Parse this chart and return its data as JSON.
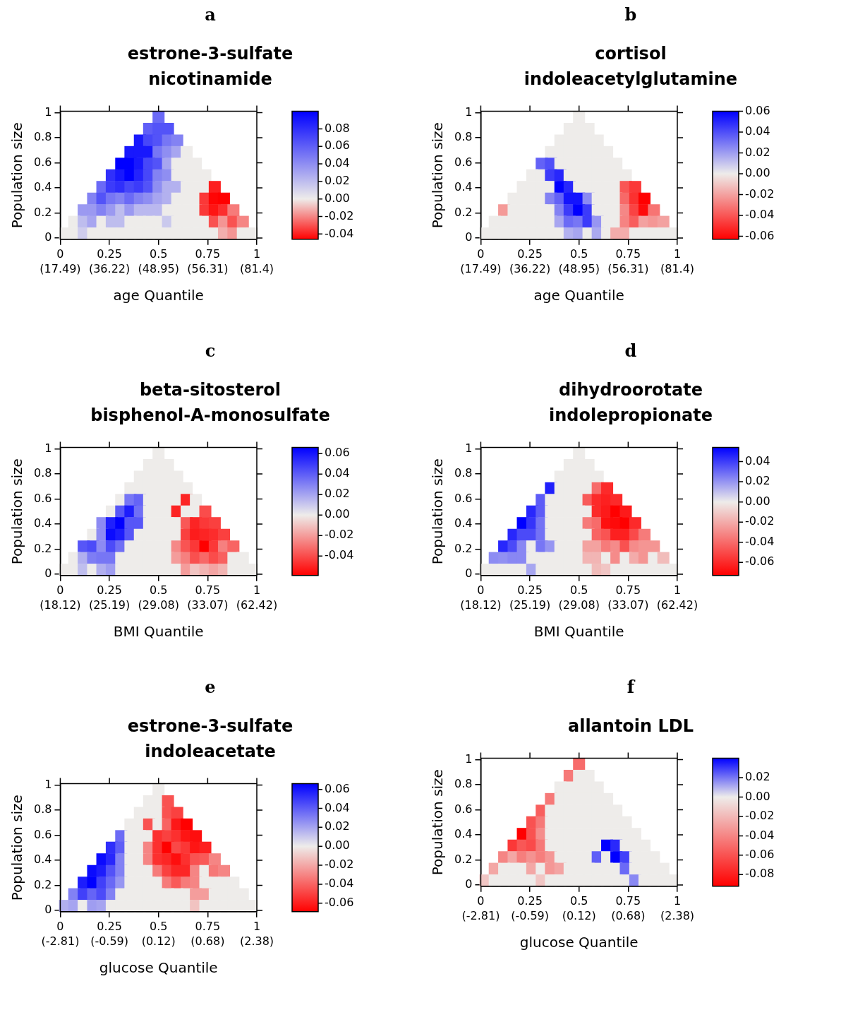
{
  "chart_data": [
    {
      "type": "scatter",
      "title": "a",
      "subtitle": "estrone-3-sulfate\nnicotinamide",
      "xlabel": "age Quantile",
      "ylabel": "Population size",
      "marker": "square",
      "x": [
        0.5,
        0.452,
        0.5,
        0.548,
        0.405,
        0.452,
        0.5,
        0.548,
        0.595,
        0.357,
        0.405,
        0.452,
        0.5,
        0.548,
        0.595,
        0.643,
        0.31,
        0.357,
        0.405,
        0.452,
        0.5,
        0.548,
        0.595,
        0.643,
        0.69,
        0.262,
        0.31,
        0.357,
        0.405,
        0.452,
        0.5,
        0.548,
        0.595,
        0.643,
        0.69,
        0.738,
        0.214,
        0.262,
        0.31,
        0.357,
        0.405,
        0.452,
        0.5,
        0.548,
        0.595,
        0.643,
        0.69,
        0.738,
        0.786,
        0.167,
        0.214,
        0.262,
        0.31,
        0.357,
        0.405,
        0.452,
        0.5,
        0.548,
        0.595,
        0.643,
        0.69,
        0.738,
        0.786,
        0.833,
        0.119,
        0.167,
        0.214,
        0.262,
        0.31,
        0.357,
        0.405,
        0.452,
        0.5,
        0.548,
        0.595,
        0.643,
        0.69,
        0.738,
        0.786,
        0.833,
        0.881,
        0.071,
        0.119,
        0.167,
        0.214,
        0.262,
        0.31,
        0.357,
        0.405,
        0.452,
        0.5,
        0.548,
        0.595,
        0.643,
        0.69,
        0.738,
        0.786,
        0.833,
        0.881,
        0.929,
        0.024,
        0.071,
        0.119,
        0.167,
        0.214,
        0.262,
        0.31,
        0.357,
        0.405,
        0.452,
        0.5,
        0.548,
        0.595,
        0.643,
        0.69,
        0.738,
        0.786,
        0.833,
        0.881,
        0.929,
        0.976
      ],
      "values": [
        0.963,
        0.87,
        0.87,
        0.87,
        0.777,
        0.777,
        0.777,
        0.777,
        0.777,
        0.685,
        0.685,
        0.685,
        0.685,
        0.685,
        0.685,
        0.685,
        0.592,
        0.592,
        0.592,
        0.592,
        0.592,
        0.592,
        0.592,
        0.592,
        0.592,
        0.5,
        0.5,
        0.5,
        0.5,
        0.5,
        0.5,
        0.5,
        0.5,
        0.5,
        0.5,
        0.5,
        0.407,
        0.407,
        0.407,
        0.407,
        0.407,
        0.407,
        0.407,
        0.407,
        0.407,
        0.407,
        0.407,
        0.407,
        0.407,
        0.314,
        0.314,
        0.314,
        0.314,
        0.314,
        0.314,
        0.314,
        0.314,
        0.314,
        0.314,
        0.314,
        0.314,
        0.314,
        0.314,
        0.314,
        0.221,
        0.221,
        0.221,
        0.221,
        0.221,
        0.221,
        0.221,
        0.221,
        0.221,
        0.221,
        0.221,
        0.221,
        0.221,
        0.221,
        0.221,
        0.221,
        0.221,
        0.129,
        0.129,
        0.129,
        0.129,
        0.129,
        0.129,
        0.129,
        0.129,
        0.129,
        0.129,
        0.129,
        0.129,
        0.129,
        0.129,
        0.129,
        0.129,
        0.129,
        0.129,
        0.129,
        0.036,
        0.036,
        0.036,
        0.036,
        0.036,
        0.036,
        0.036,
        0.036,
        0.036,
        0.036,
        0.036,
        0.036,
        0.036,
        0.036,
        0.036,
        0.036,
        0.036,
        0.036,
        0.036,
        0.036,
        0.036
      ],
      "cvalues": [
        0.055,
        0.06,
        0.065,
        0.065,
        0.09,
        0.07,
        0.065,
        0.05,
        0.045,
        0.09,
        0.09,
        0.09,
        0.05,
        0.04,
        0.03,
        0,
        0.1,
        0.1,
        0.09,
        0.07,
        0.065,
        0.03,
        0,
        0,
        0,
        0.08,
        0.09,
        0.1,
        0.085,
        0.07,
        0.045,
        0.04,
        0,
        0,
        0,
        0,
        0.055,
        0.075,
        0.08,
        0.07,
        0.075,
        0.065,
        0.04,
        0.025,
        0.025,
        0,
        0,
        0,
        -0.04,
        0.045,
        0.065,
        0.05,
        0.045,
        0.055,
        0.045,
        0.04,
        0.03,
        0.025,
        0,
        0,
        0,
        -0.035,
        -0.045,
        -0.046,
        0.035,
        0.035,
        0.045,
        0.035,
        0.02,
        0.035,
        0.022,
        0.022,
        0.022,
        0,
        0,
        0,
        0,
        -0.035,
        -0.042,
        -0.037,
        -0.022,
        0,
        0.02,
        0.03,
        0,
        0.02,
        0.02,
        0,
        0,
        0,
        0,
        0.015,
        0,
        0,
        0,
        0,
        -0.03,
        -0.017,
        -0.03,
        -0.02,
        0,
        0,
        0.013,
        0,
        0,
        0,
        0,
        0,
        0,
        0,
        0,
        0,
        0,
        0,
        0,
        0,
        0,
        -0.012,
        -0.017,
        0,
        0
      ],
      "xlim": [
        0,
        1
      ],
      "xticks": [
        0,
        0.25,
        0.5,
        0.75,
        1
      ],
      "annotations": [
        "(17.49)",
        "(36.22)",
        "(48.95)",
        "(56.31)",
        "(81.4)"
      ],
      "ylim": [
        -0.01,
        1.01
      ],
      "yticks": [
        0,
        0.2,
        0.4,
        0.6,
        0.8,
        1
      ],
      "clim": [
        -0.046,
        0.1
      ],
      "cticks": [
        {
          "value": 0.08,
          "label": "0.08"
        },
        {
          "value": 0.06,
          "label": "0.06"
        },
        {
          "value": 0.04,
          "label": "0.04"
        },
        {
          "value": 0.02,
          "label": "0.02"
        },
        {
          "value": 0,
          "label": "0.00"
        },
        {
          "value": -0.02,
          "label": "-0.02"
        },
        {
          "value": -0.04,
          "label": "-0.04"
        }
      ]
    },
    {
      "type": "scatter",
      "title": "b",
      "subtitle": "cortisol\nindoleacetylglutamine",
      "xlabel": "age Quantile",
      "ylabel": "Population size",
      "marker": "square",
      "x": [
        0.5,
        0.452,
        0.5,
        0.548,
        0.405,
        0.452,
        0.5,
        0.548,
        0.595,
        0.357,
        0.405,
        0.452,
        0.5,
        0.548,
        0.595,
        0.643,
        0.31,
        0.357,
        0.405,
        0.452,
        0.5,
        0.548,
        0.595,
        0.643,
        0.69,
        0.262,
        0.31,
        0.357,
        0.405,
        0.452,
        0.5,
        0.548,
        0.595,
        0.643,
        0.69,
        0.738,
        0.214,
        0.262,
        0.31,
        0.357,
        0.405,
        0.452,
        0.5,
        0.548,
        0.595,
        0.643,
        0.69,
        0.738,
        0.786,
        0.167,
        0.214,
        0.262,
        0.31,
        0.357,
        0.405,
        0.452,
        0.5,
        0.548,
        0.595,
        0.643,
        0.69,
        0.738,
        0.786,
        0.833,
        0.119,
        0.167,
        0.214,
        0.262,
        0.31,
        0.357,
        0.405,
        0.452,
        0.5,
        0.548,
        0.595,
        0.643,
        0.69,
        0.738,
        0.786,
        0.833,
        0.881,
        0.071,
        0.119,
        0.167,
        0.214,
        0.262,
        0.31,
        0.357,
        0.405,
        0.452,
        0.5,
        0.548,
        0.595,
        0.643,
        0.69,
        0.738,
        0.786,
        0.833,
        0.881,
        0.929,
        0.024,
        0.071,
        0.119,
        0.167,
        0.214,
        0.262,
        0.31,
        0.357,
        0.405,
        0.452,
        0.5,
        0.548,
        0.595,
        0.643,
        0.69,
        0.738,
        0.786,
        0.833,
        0.881,
        0.929,
        0.976
      ],
      "values": [
        0.963,
        0.87,
        0.87,
        0.87,
        0.777,
        0.777,
        0.777,
        0.777,
        0.777,
        0.685,
        0.685,
        0.685,
        0.685,
        0.685,
        0.685,
        0.685,
        0.592,
        0.592,
        0.592,
        0.592,
        0.592,
        0.592,
        0.592,
        0.592,
        0.592,
        0.5,
        0.5,
        0.5,
        0.5,
        0.5,
        0.5,
        0.5,
        0.5,
        0.5,
        0.5,
        0.5,
        0.407,
        0.407,
        0.407,
        0.407,
        0.407,
        0.407,
        0.407,
        0.407,
        0.407,
        0.407,
        0.407,
        0.407,
        0.407,
        0.314,
        0.314,
        0.314,
        0.314,
        0.314,
        0.314,
        0.314,
        0.314,
        0.314,
        0.314,
        0.314,
        0.314,
        0.314,
        0.314,
        0.314,
        0.221,
        0.221,
        0.221,
        0.221,
        0.221,
        0.221,
        0.221,
        0.221,
        0.221,
        0.221,
        0.221,
        0.221,
        0.221,
        0.221,
        0.221,
        0.221,
        0.221,
        0.129,
        0.129,
        0.129,
        0.129,
        0.129,
        0.129,
        0.129,
        0.129,
        0.129,
        0.129,
        0.129,
        0.129,
        0.129,
        0.129,
        0.129,
        0.129,
        0.129,
        0.129,
        0.129,
        0.036,
        0.036,
        0.036,
        0.036,
        0.036,
        0.036,
        0.036,
        0.036,
        0.036,
        0.036,
        0.036,
        0.036,
        0.036,
        0.036,
        0.036,
        0.036,
        0.036,
        0.036,
        0.036,
        0.036,
        0.036
      ],
      "cvalues": [
        0,
        0,
        0,
        0,
        0,
        0,
        0,
        0,
        0,
        0,
        0,
        0,
        0,
        0,
        0,
        0,
        0.035,
        0.04,
        0,
        0,
        0,
        0,
        0,
        0,
        0,
        0,
        0,
        0.045,
        0.05,
        0,
        0,
        0,
        0,
        0,
        0,
        0,
        0,
        0,
        0,
        0,
        0.06,
        0.05,
        0,
        0,
        0,
        0,
        0,
        -0.04,
        -0.048,
        0,
        0,
        0,
        0,
        0.027,
        0.035,
        0.055,
        0.055,
        0.025,
        0,
        0,
        0,
        -0.035,
        -0.05,
        -0.063,
        -0.022,
        0,
        0,
        0,
        0,
        0,
        0.027,
        0.045,
        0.06,
        0.045,
        0,
        0,
        0,
        -0.027,
        -0.045,
        -0.06,
        -0.032,
        0,
        0,
        0,
        0,
        0,
        0,
        0,
        0.018,
        0.033,
        0.03,
        0.045,
        0.022,
        0,
        0,
        -0.028,
        -0.038,
        -0.02,
        -0.023,
        -0.02,
        0,
        0,
        0,
        0,
        0,
        0,
        0,
        0,
        0,
        0.015,
        0.018,
        0,
        0.017,
        0,
        -0.017,
        -0.017,
        0,
        0,
        0,
        0,
        0
      ],
      "xlim": [
        0,
        1
      ],
      "xticks": [
        0,
        0.25,
        0.5,
        0.75,
        1
      ],
      "annotations": [
        "(17.49)",
        "(36.22)",
        "(48.95)",
        "(56.31)",
        "(81.4)"
      ],
      "ylim": [
        -0.01,
        1.01
      ],
      "yticks": [
        0,
        0.2,
        0.4,
        0.6,
        0.8,
        1
      ],
      "clim": [
        -0.063,
        0.06
      ],
      "cticks": [
        {
          "value": 0.06,
          "label": "0.06"
        },
        {
          "value": 0.04,
          "label": "0.04"
        },
        {
          "value": 0.02,
          "label": "0.02"
        },
        {
          "value": 0,
          "label": "0.00"
        },
        {
          "value": -0.02,
          "label": "-0.02"
        },
        {
          "value": -0.04,
          "label": "-0.04"
        },
        {
          "value": -0.06,
          "label": "-0.06"
        }
      ]
    },
    {
      "type": "scatter",
      "title": "c",
      "subtitle": "beta-sitosterol\nbisphenol-A-monosulfate",
      "xlabel": "BMI Quantile",
      "ylabel": "Population size",
      "marker": "square",
      "x": [
        0.5,
        0.452,
        0.5,
        0.548,
        0.405,
        0.452,
        0.5,
        0.548,
        0.595,
        0.357,
        0.405,
        0.452,
        0.5,
        0.548,
        0.595,
        0.643,
        0.31,
        0.357,
        0.405,
        0.452,
        0.5,
        0.548,
        0.595,
        0.643,
        0.69,
        0.262,
        0.31,
        0.357,
        0.405,
        0.452,
        0.5,
        0.548,
        0.595,
        0.643,
        0.69,
        0.738,
        0.214,
        0.262,
        0.31,
        0.357,
        0.405,
        0.452,
        0.5,
        0.548,
        0.595,
        0.643,
        0.69,
        0.738,
        0.786,
        0.167,
        0.214,
        0.262,
        0.31,
        0.357,
        0.405,
        0.452,
        0.5,
        0.548,
        0.595,
        0.643,
        0.69,
        0.738,
        0.786,
        0.833,
        0.119,
        0.167,
        0.214,
        0.262,
        0.31,
        0.357,
        0.405,
        0.452,
        0.5,
        0.548,
        0.595,
        0.643,
        0.69,
        0.738,
        0.786,
        0.833,
        0.881,
        0.071,
        0.119,
        0.167,
        0.214,
        0.262,
        0.31,
        0.357,
        0.405,
        0.452,
        0.5,
        0.548,
        0.595,
        0.643,
        0.69,
        0.738,
        0.786,
        0.833,
        0.881,
        0.929,
        0.024,
        0.071,
        0.119,
        0.167,
        0.214,
        0.262,
        0.31,
        0.357,
        0.405,
        0.452,
        0.5,
        0.548,
        0.595,
        0.643,
        0.69,
        0.738,
        0.786,
        0.833,
        0.881,
        0.929,
        0.976
      ],
      "values": [
        0.963,
        0.87,
        0.87,
        0.87,
        0.777,
        0.777,
        0.777,
        0.777,
        0.777,
        0.685,
        0.685,
        0.685,
        0.685,
        0.685,
        0.685,
        0.685,
        0.592,
        0.592,
        0.592,
        0.592,
        0.592,
        0.592,
        0.592,
        0.592,
        0.592,
        0.5,
        0.5,
        0.5,
        0.5,
        0.5,
        0.5,
        0.5,
        0.5,
        0.5,
        0.5,
        0.5,
        0.407,
        0.407,
        0.407,
        0.407,
        0.407,
        0.407,
        0.407,
        0.407,
        0.407,
        0.407,
        0.407,
        0.407,
        0.407,
        0.314,
        0.314,
        0.314,
        0.314,
        0.314,
        0.314,
        0.314,
        0.314,
        0.314,
        0.314,
        0.314,
        0.314,
        0.314,
        0.314,
        0.314,
        0.221,
        0.221,
        0.221,
        0.221,
        0.221,
        0.221,
        0.221,
        0.221,
        0.221,
        0.221,
        0.221,
        0.221,
        0.221,
        0.221,
        0.221,
        0.221,
        0.221,
        0.129,
        0.129,
        0.129,
        0.129,
        0.129,
        0.129,
        0.129,
        0.129,
        0.129,
        0.129,
        0.129,
        0.129,
        0.129,
        0.129,
        0.129,
        0.129,
        0.129,
        0.129,
        0.129,
        0.036,
        0.036,
        0.036,
        0.036,
        0.036,
        0.036,
        0.036,
        0.036,
        0.036,
        0.036,
        0.036,
        0.036,
        0.036,
        0.036,
        0.036,
        0.036,
        0.036,
        0.036,
        0.036,
        0.036,
        0.036
      ],
      "cvalues": [
        0,
        0,
        0,
        0,
        0,
        0,
        0,
        0,
        0,
        0,
        0,
        0,
        0,
        0,
        0,
        0,
        0,
        0.033,
        0.038,
        0,
        0,
        0,
        0,
        -0.05,
        0,
        0,
        0.042,
        0.058,
        0.035,
        0,
        0,
        0,
        -0.05,
        0,
        0,
        -0.04,
        0.027,
        0.057,
        0.066,
        0.042,
        0.042,
        0,
        0,
        0,
        0,
        -0.037,
        -0.05,
        -0.045,
        -0.043,
        0,
        0.027,
        0.063,
        0.058,
        0.042,
        0,
        0,
        0,
        0,
        0,
        -0.043,
        -0.052,
        -0.05,
        -0.048,
        -0.043,
        0.042,
        0.045,
        0.027,
        0.045,
        0.035,
        0,
        0,
        0,
        0,
        0,
        -0.025,
        -0.038,
        -0.045,
        -0.059,
        -0.045,
        -0.027,
        -0.034,
        0,
        0.017,
        0.031,
        0.033,
        0.033,
        0,
        0,
        0,
        0,
        0,
        0,
        -0.02,
        -0.027,
        -0.039,
        -0.033,
        -0.04,
        -0.035,
        0,
        0,
        0,
        0,
        0.013,
        0,
        0.017,
        0.022,
        0,
        0,
        0,
        0,
        0,
        0,
        0,
        -0.02,
        -0.01,
        -0.014,
        -0.018,
        -0.014,
        0,
        0,
        0
      ],
      "xlim": [
        0,
        1
      ],
      "xticks": [
        0,
        0.25,
        0.5,
        0.75,
        1
      ],
      "annotations": [
        "(18.12)",
        "(25.19)",
        "(29.08)",
        "(33.07)",
        "(62.42)"
      ],
      "ylim": [
        -0.01,
        1.01
      ],
      "yticks": [
        0,
        0.2,
        0.4,
        0.6,
        0.8,
        1
      ],
      "clim": [
        -0.059,
        0.066
      ],
      "cticks": [
        {
          "value": 0.06,
          "label": "0.06"
        },
        {
          "value": 0.04,
          "label": "0.04"
        },
        {
          "value": 0.02,
          "label": "0.02"
        },
        {
          "value": 0,
          "label": "0.00"
        },
        {
          "value": -0.02,
          "label": "-0.02"
        },
        {
          "value": -0.04,
          "label": "-0.04"
        }
      ]
    },
    {
      "type": "scatter",
      "title": "d",
      "subtitle": "dihydroorotate\nindolepropionate",
      "xlabel": "BMI Quantile",
      "ylabel": "Population size",
      "marker": "square",
      "x": [
        0.5,
        0.452,
        0.5,
        0.548,
        0.405,
        0.452,
        0.5,
        0.548,
        0.595,
        0.357,
        0.405,
        0.452,
        0.5,
        0.548,
        0.595,
        0.643,
        0.31,
        0.357,
        0.405,
        0.452,
        0.5,
        0.548,
        0.595,
        0.643,
        0.69,
        0.262,
        0.31,
        0.357,
        0.405,
        0.452,
        0.5,
        0.548,
        0.595,
        0.643,
        0.69,
        0.738,
        0.214,
        0.262,
        0.31,
        0.357,
        0.405,
        0.452,
        0.5,
        0.548,
        0.595,
        0.643,
        0.69,
        0.738,
        0.786,
        0.167,
        0.214,
        0.262,
        0.31,
        0.357,
        0.405,
        0.452,
        0.5,
        0.548,
        0.595,
        0.643,
        0.69,
        0.738,
        0.786,
        0.833,
        0.119,
        0.167,
        0.214,
        0.262,
        0.31,
        0.357,
        0.405,
        0.452,
        0.5,
        0.548,
        0.595,
        0.643,
        0.69,
        0.738,
        0.786,
        0.833,
        0.881,
        0.071,
        0.119,
        0.167,
        0.214,
        0.262,
        0.31,
        0.357,
        0.405,
        0.452,
        0.5,
        0.548,
        0.595,
        0.643,
        0.69,
        0.738,
        0.786,
        0.833,
        0.881,
        0.929,
        0.024,
        0.071,
        0.119,
        0.167,
        0.214,
        0.262,
        0.31,
        0.357,
        0.405,
        0.452,
        0.5,
        0.548,
        0.595,
        0.643,
        0.69,
        0.738,
        0.786,
        0.833,
        0.881,
        0.929,
        0.976
      ],
      "values": [
        0.963,
        0.87,
        0.87,
        0.87,
        0.777,
        0.777,
        0.777,
        0.777,
        0.777,
        0.685,
        0.685,
        0.685,
        0.685,
        0.685,
        0.685,
        0.685,
        0.592,
        0.592,
        0.592,
        0.592,
        0.592,
        0.592,
        0.592,
        0.592,
        0.592,
        0.5,
        0.5,
        0.5,
        0.5,
        0.5,
        0.5,
        0.5,
        0.5,
        0.5,
        0.5,
        0.5,
        0.407,
        0.407,
        0.407,
        0.407,
        0.407,
        0.407,
        0.407,
        0.407,
        0.407,
        0.407,
        0.407,
        0.407,
        0.407,
        0.314,
        0.314,
        0.314,
        0.314,
        0.314,
        0.314,
        0.314,
        0.314,
        0.314,
        0.314,
        0.314,
        0.314,
        0.314,
        0.314,
        0.314,
        0.221,
        0.221,
        0.221,
        0.221,
        0.221,
        0.221,
        0.221,
        0.221,
        0.221,
        0.221,
        0.221,
        0.221,
        0.221,
        0.221,
        0.221,
        0.221,
        0.221,
        0.129,
        0.129,
        0.129,
        0.129,
        0.129,
        0.129,
        0.129,
        0.129,
        0.129,
        0.129,
        0.129,
        0.129,
        0.129,
        0.129,
        0.129,
        0.129,
        0.129,
        0.129,
        0.129,
        0.036,
        0.036,
        0.036,
        0.036,
        0.036,
        0.036,
        0.036,
        0.036,
        0.036,
        0.036,
        0.036,
        0.036,
        0.036,
        0.036,
        0.036,
        0.036,
        0.036,
        0.036,
        0.036,
        0.036,
        0.036
      ],
      "cvalues": [
        0,
        0,
        0,
        0,
        0,
        0,
        0,
        0,
        0,
        0.047,
        0,
        0,
        0,
        0,
        -0.04,
        -0.06,
        0.033,
        0,
        0,
        0,
        0,
        -0.045,
        -0.06,
        -0.063,
        -0.06,
        0.045,
        0.033,
        0,
        0,
        0,
        0,
        0,
        -0.06,
        -0.065,
        -0.073,
        -0.065,
        0.054,
        0.042,
        0.028,
        0,
        0,
        0,
        0,
        -0.035,
        -0.04,
        -0.068,
        -0.07,
        -0.073,
        -0.06,
        0.045,
        0.037,
        0.037,
        0.028,
        0,
        0,
        0,
        0,
        0,
        -0.042,
        -0.047,
        -0.063,
        -0.063,
        -0.05,
        -0.035,
        0.045,
        0.037,
        0.023,
        0,
        0.027,
        0.02,
        0,
        0,
        0,
        -0.023,
        -0.023,
        -0.035,
        -0.03,
        -0.048,
        -0.03,
        -0.027,
        -0.027,
        0.022,
        0.021,
        0.023,
        0.023,
        0,
        0,
        0,
        0,
        0,
        0,
        -0.017,
        -0.017,
        0,
        -0.03,
        0,
        -0.02,
        -0.027,
        0,
        -0.015,
        0,
        0,
        0,
        0,
        0,
        0.016,
        0,
        0,
        0,
        0,
        0,
        0,
        -0.015,
        -0.012,
        0,
        0,
        0,
        0,
        0,
        0,
        0
      ],
      "xlim": [
        0,
        1
      ],
      "xticks": [
        0,
        0.25,
        0.5,
        0.75,
        1
      ],
      "annotations": [
        "(18.12)",
        "(25.19)",
        "(29.08)",
        "(33.07)",
        "(62.42)"
      ],
      "ylim": [
        -0.01,
        1.01
      ],
      "yticks": [
        0,
        0.2,
        0.4,
        0.6,
        0.8,
        1
      ],
      "clim": [
        -0.073,
        0.054
      ],
      "cticks": [
        {
          "value": 0.04,
          "label": "0.04"
        },
        {
          "value": 0.02,
          "label": "0.02"
        },
        {
          "value": 0,
          "label": "0.00"
        },
        {
          "value": -0.02,
          "label": "-0.02"
        },
        {
          "value": -0.04,
          "label": "-0.04"
        },
        {
          "value": -0.06,
          "label": "-0.06"
        }
      ]
    },
    {
      "type": "scatter",
      "title": "e",
      "subtitle": "estrone-3-sulfate\nindoleacetate",
      "xlabel": "glucose Quantile",
      "ylabel": "Population size",
      "marker": "square",
      "x": [
        0.5,
        0.452,
        0.5,
        0.548,
        0.405,
        0.452,
        0.5,
        0.548,
        0.595,
        0.357,
        0.405,
        0.452,
        0.5,
        0.548,
        0.595,
        0.643,
        0.31,
        0.357,
        0.405,
        0.452,
        0.5,
        0.548,
        0.595,
        0.643,
        0.69,
        0.262,
        0.31,
        0.357,
        0.405,
        0.452,
        0.5,
        0.548,
        0.595,
        0.643,
        0.69,
        0.738,
        0.214,
        0.262,
        0.31,
        0.357,
        0.405,
        0.452,
        0.5,
        0.548,
        0.595,
        0.643,
        0.69,
        0.738,
        0.786,
        0.167,
        0.214,
        0.262,
        0.31,
        0.357,
        0.405,
        0.452,
        0.5,
        0.548,
        0.595,
        0.643,
        0.69,
        0.738,
        0.786,
        0.833,
        0.119,
        0.167,
        0.214,
        0.262,
        0.31,
        0.357,
        0.405,
        0.452,
        0.5,
        0.548,
        0.595,
        0.643,
        0.69,
        0.738,
        0.786,
        0.833,
        0.881,
        0.071,
        0.119,
        0.167,
        0.214,
        0.262,
        0.31,
        0.357,
        0.405,
        0.452,
        0.5,
        0.548,
        0.595,
        0.643,
        0.69,
        0.738,
        0.786,
        0.833,
        0.881,
        0.929,
        0.024,
        0.071,
        0.119,
        0.167,
        0.214,
        0.262,
        0.31,
        0.357,
        0.405,
        0.452,
        0.5,
        0.548,
        0.595,
        0.643,
        0.69,
        0.738,
        0.786,
        0.833,
        0.881,
        0.929,
        0.976
      ],
      "values": [
        0.963,
        0.87,
        0.87,
        0.87,
        0.777,
        0.777,
        0.777,
        0.777,
        0.777,
        0.685,
        0.685,
        0.685,
        0.685,
        0.685,
        0.685,
        0.685,
        0.592,
        0.592,
        0.592,
        0.592,
        0.592,
        0.592,
        0.592,
        0.592,
        0.592,
        0.5,
        0.5,
        0.5,
        0.5,
        0.5,
        0.5,
        0.5,
        0.5,
        0.5,
        0.5,
        0.5,
        0.407,
        0.407,
        0.407,
        0.407,
        0.407,
        0.407,
        0.407,
        0.407,
        0.407,
        0.407,
        0.407,
        0.407,
        0.407,
        0.314,
        0.314,
        0.314,
        0.314,
        0.314,
        0.314,
        0.314,
        0.314,
        0.314,
        0.314,
        0.314,
        0.314,
        0.314,
        0.314,
        0.314,
        0.221,
        0.221,
        0.221,
        0.221,
        0.221,
        0.221,
        0.221,
        0.221,
        0.221,
        0.221,
        0.221,
        0.221,
        0.221,
        0.221,
        0.221,
        0.221,
        0.221,
        0.129,
        0.129,
        0.129,
        0.129,
        0.129,
        0.129,
        0.129,
        0.129,
        0.129,
        0.129,
        0.129,
        0.129,
        0.129,
        0.129,
        0.129,
        0.129,
        0.129,
        0.129,
        0.129,
        0.036,
        0.036,
        0.036,
        0.036,
        0.036,
        0.036,
        0.036,
        0.036,
        0.036,
        0.036,
        0.036,
        0.036,
        0.036,
        0.036,
        0.036,
        0.036,
        0.036,
        0.036,
        0.036,
        0.036,
        0.036
      ],
      "cvalues": [
        0,
        0,
        0,
        -0.045,
        0,
        0,
        0,
        -0.045,
        -0.05,
        0,
        0,
        -0.045,
        0,
        -0.04,
        -0.062,
        -0.069,
        0.036,
        0,
        0,
        0,
        -0.055,
        -0.05,
        -0.055,
        -0.063,
        -0.065,
        0.053,
        0.04,
        0,
        0,
        -0.03,
        -0.055,
        -0.069,
        -0.048,
        -0.053,
        -0.063,
        -0.06,
        0.063,
        0.055,
        0.03,
        0,
        0,
        -0.03,
        -0.055,
        -0.058,
        -0.065,
        -0.055,
        -0.045,
        -0.043,
        -0.03,
        0.063,
        0.058,
        0.043,
        0.03,
        0,
        0,
        0,
        -0.033,
        -0.05,
        -0.058,
        -0.058,
        -0.03,
        0,
        -0.034,
        -0.03,
        0.058,
        0.066,
        0.048,
        0.037,
        0.024,
        0,
        0,
        0,
        0,
        -0.033,
        -0.043,
        -0.033,
        -0.03,
        0,
        0,
        0,
        0,
        0.03,
        0.048,
        0.038,
        0.045,
        0.03,
        0,
        0,
        0,
        0,
        0,
        0,
        0,
        0,
        -0.023,
        -0.023,
        0,
        0,
        0,
        0,
        0.017,
        0.02,
        0,
        0.022,
        0.02,
        0,
        0,
        0,
        0,
        0,
        0,
        0,
        0,
        0,
        -0.012,
        0,
        0,
        0,
        0,
        0,
        0
      ],
      "xlim": [
        0,
        1
      ],
      "xticks": [
        0,
        0.25,
        0.5,
        0.75,
        1
      ],
      "annotations": [
        "(-2.81)",
        "(-0.59)",
        "(0.12)",
        "(0.68)",
        "(2.38)"
      ],
      "ylim": [
        -0.01,
        1.01
      ],
      "yticks": [
        0,
        0.2,
        0.4,
        0.6,
        0.8,
        1
      ],
      "clim": [
        -0.069,
        0.066
      ],
      "cticks": [
        {
          "value": 0.06,
          "label": "0.06"
        },
        {
          "value": 0.04,
          "label": "0.04"
        },
        {
          "value": 0.02,
          "label": "0.02"
        },
        {
          "value": 0,
          "label": "0.00"
        },
        {
          "value": -0.02,
          "label": "-0.02"
        },
        {
          "value": -0.04,
          "label": "-0.04"
        },
        {
          "value": -0.06,
          "label": "-0.06"
        }
      ]
    },
    {
      "type": "scatter",
      "title": "f",
      "subtitle": "allantoin LDL",
      "xlabel": "glucose Quantile",
      "ylabel": "Population size",
      "marker": "square",
      "x": [
        0.5,
        0.452,
        0.5,
        0.548,
        0.405,
        0.452,
        0.5,
        0.548,
        0.595,
        0.357,
        0.405,
        0.452,
        0.5,
        0.548,
        0.595,
        0.643,
        0.31,
        0.357,
        0.405,
        0.452,
        0.5,
        0.548,
        0.595,
        0.643,
        0.69,
        0.262,
        0.31,
        0.357,
        0.405,
        0.452,
        0.5,
        0.548,
        0.595,
        0.643,
        0.69,
        0.738,
        0.214,
        0.262,
        0.31,
        0.357,
        0.405,
        0.452,
        0.5,
        0.548,
        0.595,
        0.643,
        0.69,
        0.738,
        0.786,
        0.167,
        0.214,
        0.262,
        0.31,
        0.357,
        0.405,
        0.452,
        0.5,
        0.548,
        0.595,
        0.643,
        0.69,
        0.738,
        0.786,
        0.833,
        0.119,
        0.167,
        0.214,
        0.262,
        0.31,
        0.357,
        0.405,
        0.452,
        0.5,
        0.548,
        0.595,
        0.643,
        0.69,
        0.738,
        0.786,
        0.833,
        0.881,
        0.071,
        0.119,
        0.167,
        0.214,
        0.262,
        0.31,
        0.357,
        0.405,
        0.452,
        0.5,
        0.548,
        0.595,
        0.643,
        0.69,
        0.738,
        0.786,
        0.833,
        0.881,
        0.929,
        0.024,
        0.071,
        0.119,
        0.167,
        0.214,
        0.262,
        0.31,
        0.357,
        0.405,
        0.452,
        0.5,
        0.548,
        0.595,
        0.643,
        0.69,
        0.738,
        0.786,
        0.833,
        0.881,
        0.929,
        0.976
      ],
      "values": [
        0.963,
        0.87,
        0.87,
        0.87,
        0.777,
        0.777,
        0.777,
        0.777,
        0.777,
        0.685,
        0.685,
        0.685,
        0.685,
        0.685,
        0.685,
        0.685,
        0.592,
        0.592,
        0.592,
        0.592,
        0.592,
        0.592,
        0.592,
        0.592,
        0.592,
        0.5,
        0.5,
        0.5,
        0.5,
        0.5,
        0.5,
        0.5,
        0.5,
        0.5,
        0.5,
        0.5,
        0.407,
        0.407,
        0.407,
        0.407,
        0.407,
        0.407,
        0.407,
        0.407,
        0.407,
        0.407,
        0.407,
        0.407,
        0.407,
        0.314,
        0.314,
        0.314,
        0.314,
        0.314,
        0.314,
        0.314,
        0.314,
        0.314,
        0.314,
        0.314,
        0.314,
        0.314,
        0.314,
        0.314,
        0.221,
        0.221,
        0.221,
        0.221,
        0.221,
        0.221,
        0.221,
        0.221,
        0.221,
        0.221,
        0.221,
        0.221,
        0.221,
        0.221,
        0.221,
        0.221,
        0.221,
        0.129,
        0.129,
        0.129,
        0.129,
        0.129,
        0.129,
        0.129,
        0.129,
        0.129,
        0.129,
        0.129,
        0.129,
        0.129,
        0.129,
        0.129,
        0.129,
        0.129,
        0.129,
        0.129,
        0.036,
        0.036,
        0.036,
        0.036,
        0.036,
        0.036,
        0.036,
        0.036,
        0.036,
        0.036,
        0.036,
        0.036,
        0.036,
        0.036,
        0.036,
        0.036,
        0.036,
        0.036,
        0.036,
        0.036,
        0.036
      ],
      "cvalues": [
        -0.05,
        -0.045,
        0,
        0,
        0,
        0,
        0,
        0,
        0,
        -0.045,
        0,
        0,
        0,
        0,
        0,
        0,
        -0.055,
        0,
        0,
        0,
        0,
        0,
        0,
        0,
        0,
        -0.06,
        -0.045,
        0,
        0,
        0,
        0,
        0,
        0,
        0,
        0,
        0,
        -0.092,
        -0.06,
        -0.037,
        0,
        0,
        0,
        0,
        0,
        0,
        0,
        0,
        0,
        0,
        -0.07,
        -0.058,
        -0.063,
        -0.045,
        0,
        0,
        0,
        0,
        0,
        0,
        0.04,
        0.033,
        0,
        0,
        0,
        -0.04,
        -0.027,
        -0.043,
        -0.035,
        -0.043,
        -0.033,
        0,
        0,
        0,
        0,
        0.024,
        0,
        0.04,
        0.029,
        0,
        0,
        0,
        -0.027,
        0,
        0,
        0,
        -0.027,
        0,
        -0.033,
        -0.028,
        0,
        0,
        0,
        0,
        0,
        0,
        0.022,
        0,
        0,
        0,
        0,
        -0.015,
        0,
        0,
        0,
        0,
        0,
        -0.015,
        0,
        0,
        0,
        0,
        0,
        0,
        0,
        0,
        0,
        0.017,
        0,
        0,
        0,
        0
      ],
      "xlim": [
        0,
        1
      ],
      "xticks": [
        0,
        0.25,
        0.5,
        0.75,
        1
      ],
      "annotations": [
        "(-2.81)",
        "(-0.59)",
        "(0.12)",
        "(0.68)",
        "(2.38)"
      ],
      "ylim": [
        -0.01,
        1.01
      ],
      "yticks": [
        0,
        0.2,
        0.4,
        0.6,
        0.8,
        1
      ],
      "clim": [
        -0.092,
        0.04
      ],
      "cticks": [
        {
          "value": 0.02,
          "label": "0.02"
        },
        {
          "value": 0,
          "label": "0.00"
        },
        {
          "value": -0.02,
          "label": "-0.02"
        },
        {
          "value": -0.04,
          "label": "-0.04"
        },
        {
          "value": -0.06,
          "label": "-0.06"
        },
        {
          "value": -0.08,
          "label": "-0.08"
        }
      ]
    }
  ]
}
